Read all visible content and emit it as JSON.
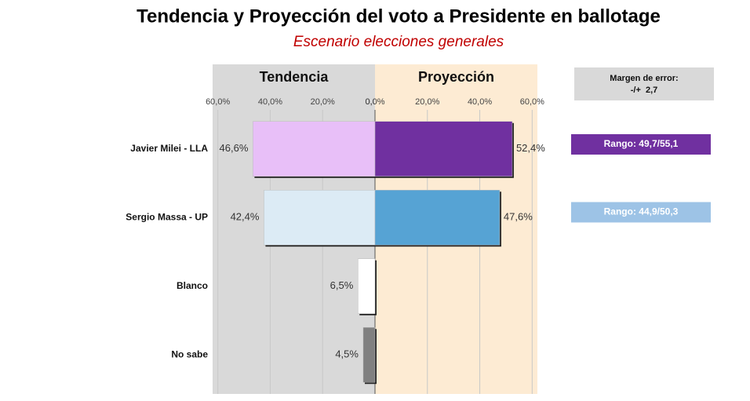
{
  "chart_data": {
    "type": "butterfly-bar",
    "title": "Tendencia y Proyección del voto a Presidente en ballotage",
    "subtitle": "Escenario elecciones generales",
    "categories": [
      "Javier Milei - LLA",
      "Sergio Massa - UP",
      "Blanco",
      "No sabe"
    ],
    "series": [
      {
        "name": "Tendencia",
        "background": "#d9d9d9",
        "side": "left",
        "colors": [
          "#e8bff8",
          "#dcebf5",
          "#ffffff",
          "#808080"
        ],
        "values": [
          46.6,
          42.4,
          6.5,
          4.5
        ],
        "value_labels": [
          "46,6%",
          "42,4%",
          "6,5%",
          "4,5%"
        ],
        "xlim": [
          62,
          0
        ],
        "xticks": [
          {
            "value": 60,
            "label": "60,0%"
          },
          {
            "value": 40,
            "label": "40,0%"
          },
          {
            "value": 20,
            "label": "20,0%"
          },
          {
            "value": 0,
            "label": "0,0%"
          }
        ]
      },
      {
        "name": "Proyección",
        "background": "#fdebd3",
        "side": "right",
        "colors": [
          "#7030a0",
          "#56a3d4",
          "#ffffff",
          "#808080"
        ],
        "values": [
          52.4,
          47.6,
          null,
          null
        ],
        "value_labels": [
          "52,4%",
          "47,6%",
          null,
          null
        ],
        "xlim": [
          0,
          62
        ],
        "xticks": [
          {
            "value": 0,
            "label": "0,0%"
          },
          {
            "value": 20,
            "label": "20,0%"
          },
          {
            "value": 40,
            "label": "40,0%"
          },
          {
            "value": 60,
            "label": "60,0%"
          }
        ]
      }
    ],
    "grid": true,
    "margin_box": {
      "title": "Margen de error:",
      "value": "-/+  2,7",
      "color": "#d9d9d9"
    },
    "ranges": [
      {
        "label": "Rango: 49,7/55,1",
        "color": "#7030a0"
      },
      {
        "label": "Rango: 44,9/50,3",
        "color": "#9dc3e6"
      }
    ]
  }
}
